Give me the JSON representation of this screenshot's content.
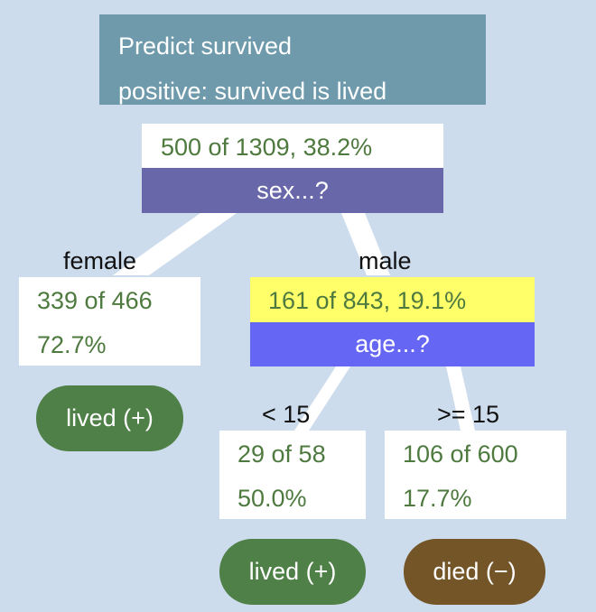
{
  "title": {
    "line1": "Predict survived",
    "line2": "positive: survived is lived"
  },
  "colors": {
    "background": "#cddcec",
    "title_bg": "#6e9aab",
    "node_text": "#4e7a3f",
    "root_split_bg": "#6867aa",
    "male_split_bg": "#6566f4",
    "highlight": "#ffff6a",
    "lived": "#4f8047",
    "died": "#735527"
  },
  "root": {
    "stats": "500 of 1309, 38.2%",
    "split": "sex...?"
  },
  "female": {
    "branch": "female",
    "count": "339 of 466",
    "pct": "72.7%",
    "leaf": "lived (+)"
  },
  "male": {
    "branch": "male",
    "stats": "161 of 843, 19.1%",
    "split": "age...?"
  },
  "young": {
    "branch": "< 15",
    "count": "29 of 58",
    "pct": "50.0%",
    "leaf": "lived (+)"
  },
  "old": {
    "branch": ">= 15",
    "count": "106 of 600",
    "pct": "17.7%",
    "leaf": "died (−)"
  }
}
